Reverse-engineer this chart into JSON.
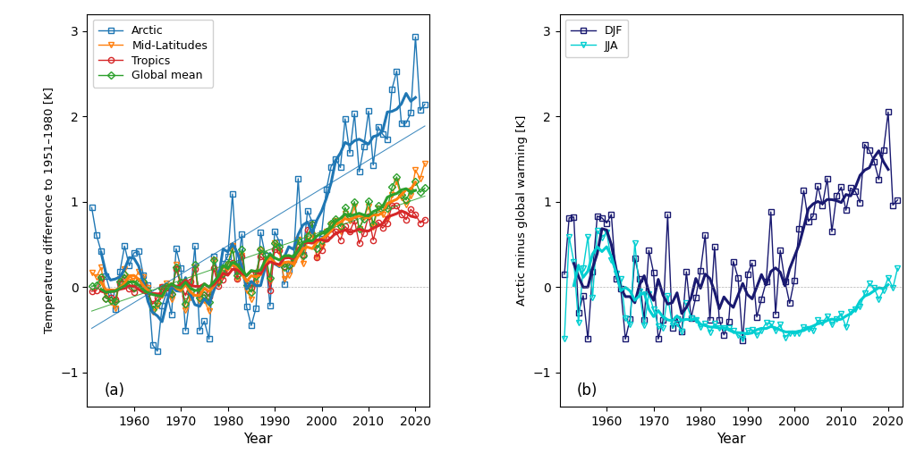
{
  "years": [
    1951,
    1952,
    1953,
    1954,
    1955,
    1956,
    1957,
    1958,
    1959,
    1960,
    1961,
    1962,
    1963,
    1964,
    1965,
    1966,
    1967,
    1968,
    1969,
    1970,
    1971,
    1972,
    1973,
    1974,
    1975,
    1976,
    1977,
    1978,
    1979,
    1980,
    1981,
    1982,
    1983,
    1984,
    1985,
    1986,
    1987,
    1988,
    1989,
    1990,
    1991,
    1992,
    1993,
    1994,
    1995,
    1996,
    1997,
    1998,
    1999,
    2000,
    2001,
    2002,
    2003,
    2004,
    2005,
    2006,
    2007,
    2008,
    2009,
    2010,
    2011,
    2012,
    2013,
    2014,
    2015,
    2016,
    2017,
    2018,
    2019,
    2020,
    2021,
    2022
  ],
  "arctic": [
    0.93,
    0.61,
    0.42,
    0.13,
    -0.06,
    -0.26,
    0.18,
    0.48,
    0.25,
    0.4,
    0.42,
    0.14,
    0.02,
    -0.68,
    -0.75,
    -0.22,
    -0.06,
    -0.32,
    0.45,
    0.22,
    -0.51,
    -0.09,
    0.48,
    -0.51,
    -0.4,
    -0.61,
    0.36,
    0.15,
    0.27,
    0.36,
    1.09,
    0.19,
    0.62,
    -0.23,
    -0.45,
    -0.25,
    0.64,
    0.37,
    -0.22,
    0.65,
    0.53,
    0.03,
    0.2,
    0.33,
    1.27,
    0.38,
    0.89,
    0.76,
    0.51,
    0.63,
    1.14,
    1.41,
    1.5,
    1.4,
    1.97,
    1.57,
    2.03,
    1.35,
    1.65,
    2.06,
    1.43,
    1.88,
    1.79,
    1.73,
    2.32,
    2.53,
    1.92,
    1.92,
    2.04,
    2.93,
    2.07,
    2.14
  ],
  "midlat": [
    0.17,
    0.12,
    0.23,
    -0.07,
    -0.18,
    -0.25,
    0.1,
    0.21,
    0.09,
    0.08,
    0.18,
    0.12,
    -0.01,
    -0.29,
    -0.22,
    0.0,
    0.04,
    -0.14,
    0.26,
    0.05,
    -0.27,
    -0.12,
    0.23,
    -0.17,
    -0.16,
    -0.28,
    0.32,
    0.03,
    0.13,
    0.26,
    0.48,
    0.1,
    0.37,
    -0.04,
    -0.14,
    0.04,
    0.43,
    0.32,
    0.07,
    0.52,
    0.41,
    0.1,
    0.14,
    0.27,
    0.56,
    0.27,
    0.55,
    0.61,
    0.35,
    0.47,
    0.65,
    0.74,
    0.78,
    0.65,
    0.86,
    0.78,
    0.94,
    0.68,
    0.82,
    0.94,
    0.7,
    0.92,
    0.85,
    0.8,
    1.08,
    1.24,
    1.05,
    0.97,
    1.07,
    1.37,
    1.27,
    1.45
  ],
  "tropics": [
    -0.05,
    -0.04,
    0.1,
    -0.13,
    -0.12,
    -0.14,
    0.04,
    0.11,
    -0.02,
    -0.06,
    0.0,
    0.02,
    -0.07,
    -0.2,
    -0.12,
    0.0,
    -0.01,
    -0.08,
    0.21,
    0.02,
    -0.1,
    0.07,
    0.21,
    -0.08,
    -0.06,
    -0.11,
    0.22,
    0.01,
    0.09,
    0.2,
    0.29,
    0.1,
    0.36,
    0.05,
    -0.01,
    0.17,
    0.36,
    0.3,
    -0.04,
    0.44,
    0.43,
    0.24,
    0.25,
    0.33,
    0.47,
    0.38,
    0.67,
    0.74,
    0.35,
    0.43,
    0.57,
    0.68,
    0.65,
    0.55,
    0.71,
    0.65,
    0.78,
    0.51,
    0.63,
    0.83,
    0.55,
    0.76,
    0.69,
    0.75,
    0.96,
    0.95,
    0.85,
    0.79,
    0.91,
    0.85,
    0.75,
    0.79
  ],
  "global": [
    0.01,
    0.02,
    0.12,
    -0.13,
    -0.15,
    -0.17,
    0.06,
    0.15,
    0.03,
    -0.01,
    0.07,
    0.07,
    -0.04,
    -0.26,
    -0.19,
    -0.02,
    0.01,
    -0.08,
    0.23,
    0.05,
    -0.2,
    -0.05,
    0.26,
    -0.12,
    -0.09,
    -0.18,
    0.32,
    0.07,
    0.16,
    0.27,
    0.44,
    0.14,
    0.44,
    0.02,
    -0.06,
    0.13,
    0.44,
    0.38,
    0.11,
    0.52,
    0.47,
    0.23,
    0.25,
    0.35,
    0.55,
    0.37,
    0.6,
    0.74,
    0.45,
    0.55,
    0.65,
    0.75,
    0.8,
    0.71,
    0.93,
    0.83,
    1.0,
    0.68,
    0.8,
    1.01,
    0.73,
    0.95,
    0.93,
    0.92,
    1.17,
    1.29,
    1.08,
    1.02,
    1.13,
    1.24,
    1.11,
    1.16
  ],
  "arctic_color": "#1f77b4",
  "midlat_color": "#ff7f0e",
  "tropics_color": "#d62728",
  "global_color": "#2ca02c",
  "djf_color": "#191970",
  "jja_color": "#00ced1",
  "djf": [
    0.15,
    0.81,
    0.82,
    -0.3,
    -0.1,
    -0.61,
    0.18,
    0.83,
    0.81,
    0.75,
    0.85,
    0.1,
    -0.02,
    -0.61,
    -0.37,
    0.34,
    0.1,
    -0.38,
    0.43,
    0.17,
    -0.61,
    -0.39,
    0.85,
    -0.48,
    -0.37,
    -0.52,
    0.18,
    -0.36,
    -0.12,
    0.19,
    0.61,
    -0.39,
    0.47,
    -0.38,
    -0.56,
    -0.41,
    0.3,
    0.11,
    -0.63,
    0.15,
    0.28,
    -0.35,
    -0.14,
    0.06,
    0.88,
    -0.32,
    0.43,
    0.07,
    -0.19,
    0.08,
    0.68,
    1.13,
    0.77,
    0.83,
    1.18,
    0.96,
    1.27,
    0.65,
    1.07,
    1.17,
    0.9,
    1.16,
    1.12,
    0.99,
    1.67,
    1.6,
    1.47,
    1.26,
    1.6,
    2.05,
    0.96,
    1.02
  ],
  "jja": [
    -0.6,
    0.59,
    0.3,
    -0.42,
    0.22,
    0.59,
    -0.12,
    0.66,
    0.58,
    0.64,
    0.32,
    0.16,
    0.1,
    -0.36,
    -0.44,
    0.52,
    -0.05,
    -0.45,
    -0.08,
    -0.26,
    -0.46,
    -0.48,
    -0.1,
    -0.45,
    -0.43,
    -0.52,
    -0.19,
    -0.36,
    -0.39,
    -0.47,
    -0.43,
    -0.53,
    -0.43,
    -0.48,
    -0.48,
    -0.48,
    -0.51,
    -0.56,
    -0.61,
    -0.51,
    -0.5,
    -0.56,
    -0.51,
    -0.42,
    -0.43,
    -0.51,
    -0.44,
    -0.59,
    -0.54,
    -0.54,
    -0.54,
    -0.47,
    -0.49,
    -0.51,
    -0.39,
    -0.42,
    -0.34,
    -0.44,
    -0.37,
    -0.31,
    -0.47,
    -0.29,
    -0.26,
    -0.23,
    -0.07,
    0.04,
    -0.01,
    -0.14,
    -0.04,
    0.11,
    -0.01,
    0.22
  ],
  "xlim": [
    1950,
    2023
  ],
  "ylim_a": [
    -1.4,
    3.2
  ],
  "ylim_b": [
    -1.4,
    3.2
  ],
  "yticks_a": [
    -1,
    0,
    1,
    2,
    3
  ],
  "yticks_b": [
    -1,
    0,
    1,
    2,
    3
  ],
  "xticks": [
    1960,
    1970,
    1980,
    1990,
    2000,
    2010,
    2020
  ],
  "ylabel_a": "Temperature difference to 1951–1980 [K]",
  "ylabel_b": "Arctic minus global warming [K]",
  "xlabel": "Year",
  "label_a": "(a)",
  "label_b": "(b)"
}
